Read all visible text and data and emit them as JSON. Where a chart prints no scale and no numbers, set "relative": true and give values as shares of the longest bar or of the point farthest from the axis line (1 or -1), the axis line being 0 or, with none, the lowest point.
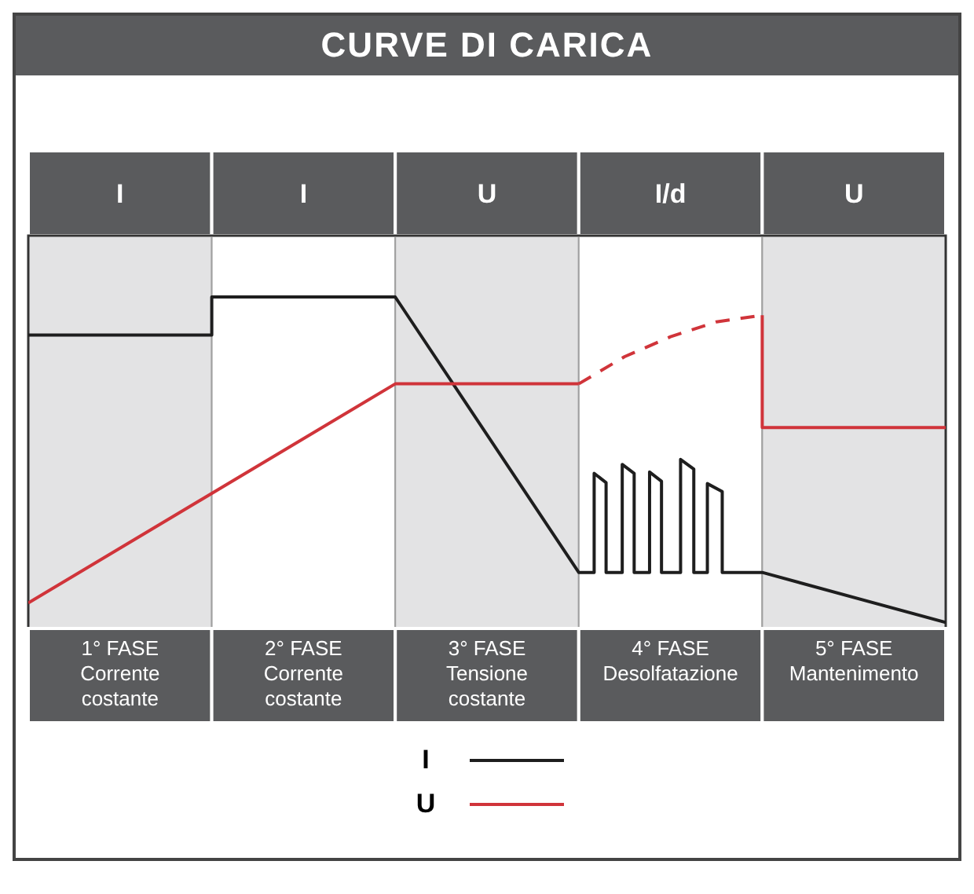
{
  "chart_data": {
    "type": "line",
    "title": "CURVE DI CARICA",
    "relative": true,
    "xlim": [
      0,
      5
    ],
    "xticks": [
      {
        "value": 0.5,
        "label": "1° FASE\nCorrente\ncostante"
      },
      {
        "value": 1.5,
        "label": "2° FASE\nCorrente\ncostante"
      },
      {
        "value": 2.5,
        "label": "3° FASE\nTensione\ncostante"
      },
      {
        "value": 3.5,
        "label": "4° FASE\nDesolfatazione"
      },
      {
        "value": 4.5,
        "label": "5° FASE\nMantenimento"
      }
    ],
    "bands": [
      {
        "axis": "x",
        "from": 0,
        "to": 1,
        "label": "I",
        "color": "#e3e3e4"
      },
      {
        "axis": "x",
        "from": 1,
        "to": 2,
        "label": "I",
        "color": "#ffffff"
      },
      {
        "axis": "x",
        "from": 2,
        "to": 3,
        "label": "U",
        "color": "#e3e3e4"
      },
      {
        "axis": "x",
        "from": 3,
        "to": 4,
        "label": "I/d",
        "color": "#ffffff"
      },
      {
        "axis": "x",
        "from": 4,
        "to": 5,
        "label": "U",
        "color": "#e3e3e4"
      }
    ],
    "series": [
      {
        "name": "I",
        "color": "#1e1e1e",
        "line_style": "solid",
        "x": [
          0,
          1,
          1,
          2,
          3,
          3.084,
          3.084,
          3.149,
          3.149,
          3.237,
          3.237,
          3.302,
          3.302,
          3.386,
          3.386,
          3.451,
          3.451,
          3.555,
          3.555,
          3.627,
          3.627,
          3.701,
          3.701,
          3.782,
          3.782,
          4,
          5
        ],
        "values": [
          0.885,
          0.885,
          1,
          1,
          0.169,
          0.169,
          0.468,
          0.44,
          0.169,
          0.169,
          0.495,
          0.468,
          0.169,
          0.169,
          0.472,
          0.444,
          0.169,
          0.169,
          0.51,
          0.481,
          0.169,
          0.169,
          0.437,
          0.413,
          0.169,
          0.169,
          0.018
        ]
      },
      {
        "name": "U",
        "color": "#d0343a",
        "line_style": "solid",
        "x": [
          0,
          2,
          3
        ],
        "values": [
          0.077,
          0.738,
          0.738
        ]
      },
      {
        "color": "#d0343a",
        "line_style": "dashed",
        "x": [
          3,
          3.25,
          3.5,
          3.75,
          4
        ],
        "values": [
          0.738,
          0.82,
          0.88,
          0.925,
          0.945
        ]
      },
      {
        "color": "#d0343a",
        "line_style": "solid",
        "x": [
          4,
          4,
          5
        ],
        "values": [
          0.945,
          0.606,
          0.606
        ]
      }
    ],
    "legend": "bottom"
  }
}
